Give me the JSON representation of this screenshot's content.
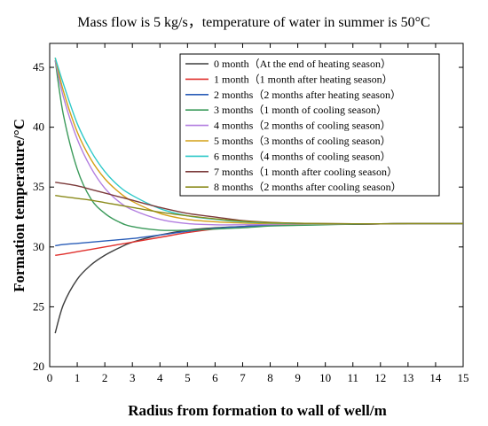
{
  "chart_data": {
    "type": "line",
    "title": "Mass flow is 5 kg/s，temperature of water in summer is 50°C",
    "xlabel": "Radius from formation to wall of well/m",
    "ylabel": "Formation temperature/°C",
    "xlim": [
      0,
      15
    ],
    "ylim": [
      20,
      47
    ],
    "xticks": [
      0,
      1,
      2,
      3,
      4,
      5,
      6,
      7,
      8,
      9,
      10,
      11,
      12,
      13,
      14,
      15
    ],
    "yticks": [
      20,
      25,
      30,
      35,
      40,
      45
    ],
    "grid": false,
    "legend_position": "top-right",
    "x": [
      0.2,
      0.5,
      1,
      1.5,
      2,
      2.5,
      3,
      4,
      5,
      6,
      7,
      8,
      9,
      10,
      11,
      12,
      13,
      14,
      15
    ],
    "series": [
      {
        "name": "0 month（At the end of heating season）",
        "color": "#3f3f3f",
        "values": [
          22.8,
          25.2,
          27.3,
          28.5,
          29.3,
          29.9,
          30.4,
          31.0,
          31.4,
          31.6,
          31.7,
          31.8,
          31.85,
          31.9,
          31.9,
          31.92,
          31.95,
          31.95,
          31.95
        ]
      },
      {
        "name": "1 month（1 month after heating season）",
        "color": "#e0302c",
        "values": [
          29.3,
          29.4,
          29.6,
          29.8,
          30.0,
          30.2,
          30.4,
          30.8,
          31.2,
          31.5,
          31.7,
          31.8,
          31.85,
          31.9,
          31.9,
          31.92,
          31.95,
          31.95,
          31.95
        ]
      },
      {
        "name": "2 months（2 months after heating season）",
        "color": "#2a5db8",
        "values": [
          30.1,
          30.2,
          30.3,
          30.4,
          30.5,
          30.6,
          30.7,
          31.0,
          31.3,
          31.55,
          31.7,
          31.8,
          31.85,
          31.9,
          31.9,
          31.92,
          31.95,
          31.95,
          31.95
        ]
      },
      {
        "name": "3 months（1 month of cooling season）",
        "color": "#3a9a5a",
        "values": [
          45.6,
          41.0,
          36.5,
          34.0,
          32.8,
          32.1,
          31.7,
          31.4,
          31.4,
          31.5,
          31.6,
          31.75,
          31.8,
          31.85,
          31.9,
          31.92,
          31.95,
          31.95,
          31.95
        ]
      },
      {
        "name": "4 months（2 months of cooling season）",
        "color": "#b27ee0",
        "values": [
          45.6,
          42.5,
          39.0,
          36.6,
          34.9,
          33.8,
          33.1,
          32.3,
          31.95,
          31.85,
          31.85,
          31.87,
          31.9,
          31.9,
          31.92,
          31.93,
          31.95,
          31.95,
          31.95
        ]
      },
      {
        "name": "5 months（3 months of cooling season）",
        "color": "#d4a017",
        "values": [
          45.8,
          43.0,
          39.6,
          37.3,
          35.7,
          34.6,
          33.8,
          32.8,
          32.3,
          32.1,
          32.0,
          31.95,
          31.92,
          31.9,
          31.92,
          31.93,
          31.95,
          31.95,
          31.95
        ]
      },
      {
        "name": "6 months（4 months of cooling season）",
        "color": "#2ec9c9",
        "values": [
          45.8,
          43.6,
          40.3,
          38.0,
          36.3,
          35.1,
          34.3,
          33.2,
          32.6,
          32.3,
          32.1,
          32.0,
          31.95,
          31.92,
          31.92,
          31.93,
          31.95,
          31.95,
          31.95
        ]
      },
      {
        "name": "7 months（1 month after cooling season）",
        "color": "#7b3a3a",
        "values": [
          35.4,
          35.3,
          35.1,
          34.8,
          34.5,
          34.2,
          33.9,
          33.3,
          32.8,
          32.5,
          32.2,
          32.05,
          31.98,
          31.95,
          31.93,
          31.93,
          31.95,
          31.95,
          31.95
        ]
      },
      {
        "name": "8 months（2 months after cooling season）",
        "color": "#8a8a1a",
        "values": [
          34.3,
          34.2,
          34.05,
          33.9,
          33.7,
          33.5,
          33.3,
          32.9,
          32.6,
          32.35,
          32.15,
          32.03,
          31.98,
          31.95,
          31.93,
          31.93,
          31.95,
          31.95,
          31.95
        ]
      }
    ]
  }
}
